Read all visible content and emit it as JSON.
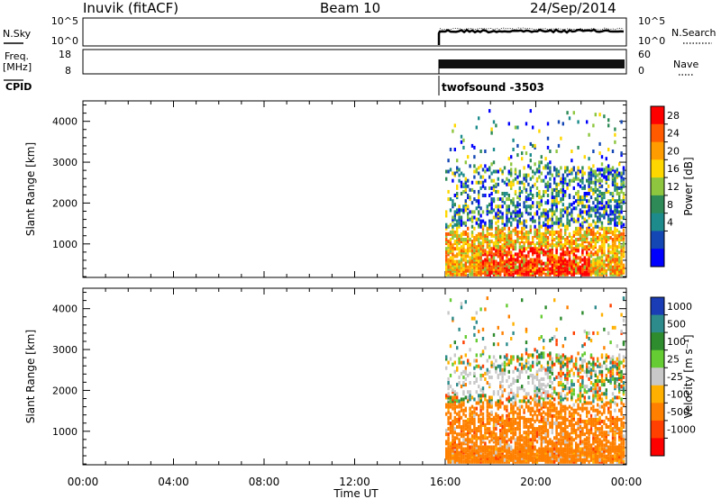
{
  "header": {
    "station": "Inuvik (fitACF)",
    "beam": "Beam 10",
    "date": "24/Sep/2014"
  },
  "top_panels": {
    "nsky_label": "N.Sky",
    "nsky_ticks": [
      "10^5",
      "10^0"
    ],
    "nsearch_ticks": [
      "10^5",
      "10^0"
    ],
    "nsearch_label": "N.Search",
    "freq_label": "Freq.",
    "freq_unit": "[MHz]",
    "freq_ticks": [
      "18",
      "8"
    ],
    "nave_ticks": [
      "60",
      "0"
    ],
    "nave_label": "Nave",
    "cpid_label": "CPID",
    "cpid_value": "twofsound -3503"
  },
  "chart_data": [
    {
      "type": "heatmap",
      "name": "power",
      "ylabel": "Slant Range [km]",
      "y_ticks": [
        1000,
        2000,
        3000,
        4000
      ],
      "ylim": [
        180,
        4500
      ],
      "x_ticks": [
        "00:00",
        "04:00",
        "08:00",
        "12:00",
        "16:00",
        "20:00",
        "00:00"
      ],
      "colorbar_label": "Power [dB]",
      "colorbar_ticks": [
        "28",
        "24",
        "20",
        "16",
        "12",
        "8",
        "4"
      ],
      "colors": [
        "#ff0000",
        "#ff5a00",
        "#ff9d00",
        "#ffd700",
        "#8ec63f",
        "#2e8b57",
        "#1d8b8b",
        "#1447b4",
        "#0000ff"
      ],
      "data_start_utc": "16:00"
    },
    {
      "type": "heatmap",
      "name": "velocity",
      "ylabel": "Slant Range [km]",
      "y_ticks": [
        1000,
        2000,
        3000,
        4000
      ],
      "ylim": [
        180,
        4500
      ],
      "x_ticks": [
        "00:00",
        "04:00",
        "08:00",
        "12:00",
        "16:00",
        "20:00",
        "00:00"
      ],
      "xlabel": "Time UT",
      "colorbar_label": "Velocity [m s⁻¹]",
      "colorbar_ticks": [
        "1000",
        "500",
        "100",
        "25",
        "-25",
        "-100",
        "-500",
        "-1000"
      ],
      "colors": [
        "#1a3cb4",
        "#2d8b8b",
        "#2e8b2e",
        "#66cc33",
        "#c8c8c8",
        "#ffb000",
        "#ff8000",
        "#ff4000",
        "#ff0000"
      ],
      "data_start_utc": "16:00"
    }
  ]
}
